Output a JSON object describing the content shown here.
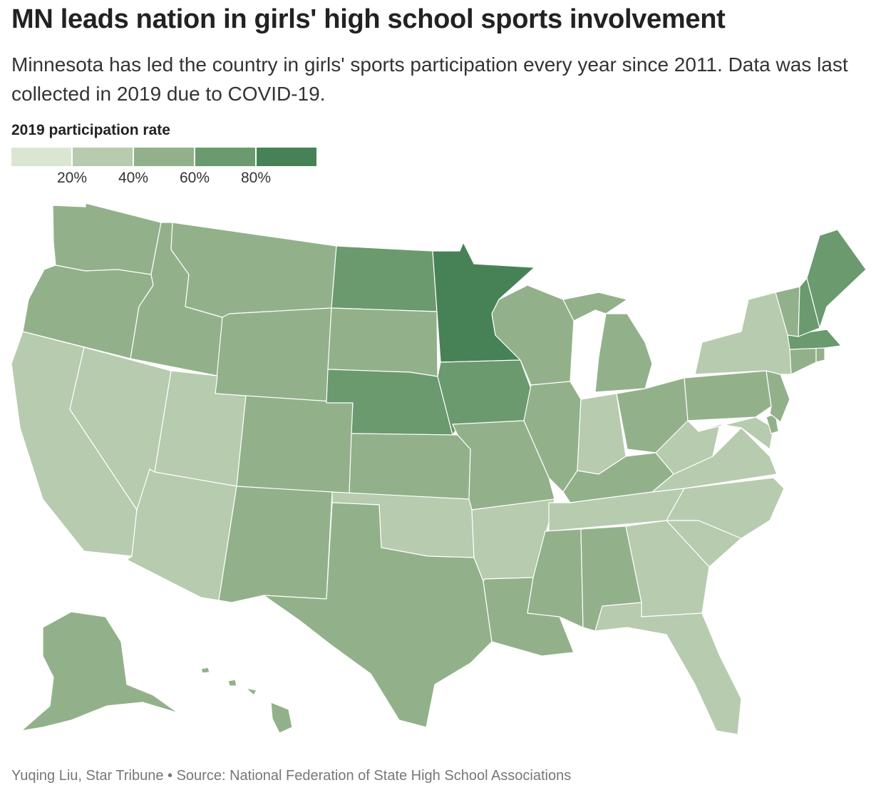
{
  "title": "MN leads nation in girls' high school sports involvement",
  "subtitle": "Minnesota has led the country in girls' sports participation every year since 2011. Data was last collected in 2019 due to COVID-19.",
  "legend": {
    "title": "2019 participation rate",
    "colors": [
      "#dbe6d2",
      "#b7cbaf",
      "#92b18a",
      "#6a9a6e",
      "#478257"
    ],
    "ticks": [
      "20%",
      "40%",
      "60%",
      "80%"
    ]
  },
  "credit": "Yuqing Liu, Star Tribune • Source: National Federation of State High School Associations",
  "map_data": {
    "type": "choropleth",
    "bins": [
      "<20%",
      "20–40%",
      "40–60%",
      "60–80%",
      ">80%"
    ],
    "states": [
      {
        "code": "WA",
        "bin": 2
      },
      {
        "code": "OR",
        "bin": 2
      },
      {
        "code": "CA",
        "bin": 1
      },
      {
        "code": "NV",
        "bin": 1
      },
      {
        "code": "ID",
        "bin": 2
      },
      {
        "code": "MT",
        "bin": 2
      },
      {
        "code": "WY",
        "bin": 2
      },
      {
        "code": "UT",
        "bin": 1
      },
      {
        "code": "AZ",
        "bin": 1
      },
      {
        "code": "CO",
        "bin": 2
      },
      {
        "code": "NM",
        "bin": 2
      },
      {
        "code": "ND",
        "bin": 3
      },
      {
        "code": "SD",
        "bin": 2
      },
      {
        "code": "NE",
        "bin": 3
      },
      {
        "code": "KS",
        "bin": 2
      },
      {
        "code": "OK",
        "bin": 1
      },
      {
        "code": "TX",
        "bin": 2
      },
      {
        "code": "MN",
        "bin": 4
      },
      {
        "code": "IA",
        "bin": 3
      },
      {
        "code": "MO",
        "bin": 2
      },
      {
        "code": "AR",
        "bin": 1
      },
      {
        "code": "LA",
        "bin": 2
      },
      {
        "code": "WI",
        "bin": 2
      },
      {
        "code": "IL",
        "bin": 2
      },
      {
        "code": "MI",
        "bin": 2
      },
      {
        "code": "IN",
        "bin": 1
      },
      {
        "code": "OH",
        "bin": 2
      },
      {
        "code": "KY",
        "bin": 2
      },
      {
        "code": "TN",
        "bin": 1
      },
      {
        "code": "MS",
        "bin": 2
      },
      {
        "code": "AL",
        "bin": 2
      },
      {
        "code": "GA",
        "bin": 1
      },
      {
        "code": "FL",
        "bin": 1
      },
      {
        "code": "SC",
        "bin": 1
      },
      {
        "code": "NC",
        "bin": 1
      },
      {
        "code": "VA",
        "bin": 1
      },
      {
        "code": "WV",
        "bin": 1
      },
      {
        "code": "PA",
        "bin": 2
      },
      {
        "code": "NY",
        "bin": 1
      },
      {
        "code": "VT",
        "bin": 2
      },
      {
        "code": "NH",
        "bin": 3
      },
      {
        "code": "ME",
        "bin": 3
      },
      {
        "code": "MA",
        "bin": 3
      },
      {
        "code": "RI",
        "bin": 2
      },
      {
        "code": "CT",
        "bin": 2
      },
      {
        "code": "NJ",
        "bin": 2
      },
      {
        "code": "DE",
        "bin": 2
      },
      {
        "code": "MD",
        "bin": 1
      },
      {
        "code": "AK",
        "bin": 2
      },
      {
        "code": "HI",
        "bin": 2
      }
    ]
  }
}
